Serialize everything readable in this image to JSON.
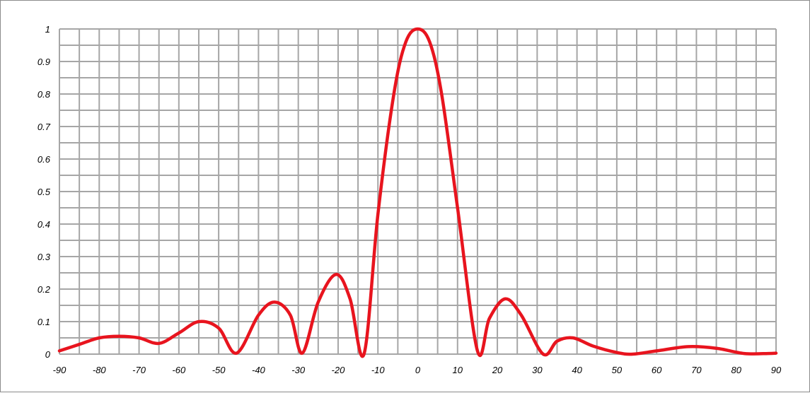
{
  "chart_data": {
    "type": "line",
    "title": "",
    "xlabel": "",
    "ylabel": "",
    "xlim": [
      -90,
      90
    ],
    "ylim": [
      0,
      1
    ],
    "x_ticks": [
      -90,
      -80,
      -70,
      -60,
      -50,
      -40,
      -30,
      -20,
      -10,
      0,
      10,
      20,
      30,
      40,
      50,
      60,
      70,
      80,
      90
    ],
    "y_ticks": [
      0,
      0.1,
      0.2,
      0.3,
      0.4,
      0.5,
      0.6,
      0.7,
      0.8,
      0.9,
      1
    ],
    "x_tick_labels": [
      "-90",
      "-80",
      "-70",
      "-60",
      "-50",
      "-40",
      "-30",
      "-20",
      "-10",
      "0",
      "10",
      "20",
      "30",
      "40",
      "50",
      "60",
      "70",
      "80",
      "90"
    ],
    "y_tick_labels": [
      "0",
      "0.1",
      "0.2",
      "0.3",
      "0.4",
      "0.5",
      "0.6",
      "0.7",
      "0.8",
      "0.9",
      "1"
    ],
    "x_minor_step": 5,
    "y_minor_step": 0.05,
    "grid": true,
    "line_color": "#e8141e",
    "grid_color": "#a6a6a6",
    "series": [
      {
        "x": [
          -90,
          -85,
          -80,
          -75,
          -70,
          -65,
          -60,
          -55,
          -50,
          -45.5,
          -40,
          -36,
          -32,
          -29,
          -25,
          -20.5,
          -17,
          -13.5,
          -10,
          -6,
          -3,
          0,
          3,
          6,
          10,
          15,
          18,
          22,
          26,
          31.5,
          35,
          39,
          44,
          50,
          54,
          60,
          68,
          75,
          82,
          88,
          90
        ],
        "y": [
          0.01,
          0.03,
          0.05,
          0.055,
          0.05,
          0.033,
          0.065,
          0.1,
          0.08,
          0.003,
          0.12,
          0.16,
          0.12,
          0.003,
          0.16,
          0.245,
          0.17,
          0.0,
          0.43,
          0.8,
          0.96,
          1.0,
          0.96,
          0.8,
          0.45,
          0.01,
          0.11,
          0.17,
          0.12,
          0.0,
          0.04,
          0.05,
          0.025,
          0.005,
          0.0,
          0.01,
          0.023,
          0.018,
          0.002,
          0.002,
          0.003
        ]
      }
    ]
  }
}
